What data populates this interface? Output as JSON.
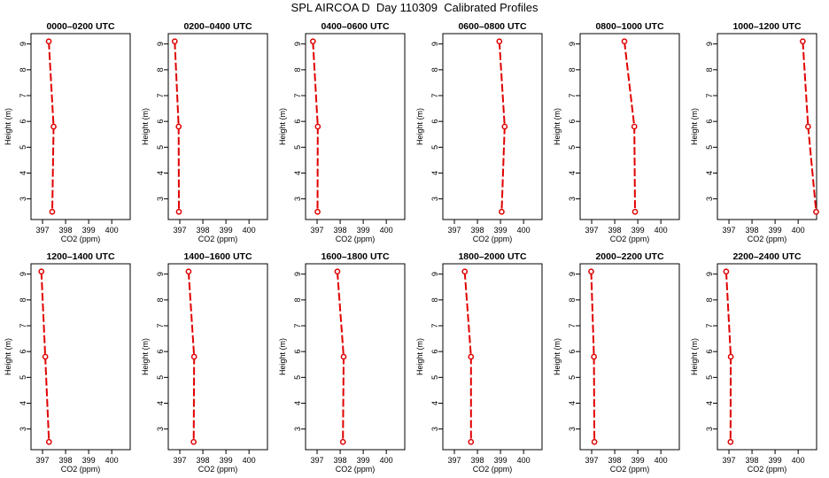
{
  "title": "SPL AIRCOA D  Day 110309  Calibrated Profiles",
  "colors": {
    "series": "#e00000",
    "axis": "#000000",
    "background": "#ffffff"
  },
  "chart_data": [
    {
      "type": "line",
      "title": "0000–0200 UTC",
      "xlabel": "CO2 (ppm)",
      "ylabel": "Height (m)",
      "xlim": [
        396.5,
        400.8
      ],
      "ylim": [
        2.2,
        9.4
      ],
      "xticks": [
        397,
        398,
        399,
        400
      ],
      "yticks": [
        3,
        4,
        5,
        6,
        7,
        8,
        9
      ],
      "grid": false,
      "points": [
        [
          397.27,
          9.1
        ],
        [
          397.48,
          5.8
        ],
        [
          397.42,
          2.5
        ]
      ]
    },
    {
      "type": "line",
      "title": "0200–0400 UTC",
      "xlabel": "CO2 (ppm)",
      "ylabel": "Height (m)",
      "xlim": [
        396.5,
        400.8
      ],
      "ylim": [
        2.2,
        9.4
      ],
      "xticks": [
        397,
        398,
        399,
        400
      ],
      "yticks": [
        3,
        4,
        5,
        6,
        7,
        8,
        9
      ],
      "grid": false,
      "points": [
        [
          396.78,
          9.1
        ],
        [
          396.95,
          5.8
        ],
        [
          396.96,
          2.5
        ]
      ]
    },
    {
      "type": "line",
      "title": "0400–0600 UTC",
      "xlabel": "CO2 (ppm)",
      "ylabel": "Height (m)",
      "xlim": [
        396.5,
        400.8
      ],
      "ylim": [
        2.2,
        9.4
      ],
      "xticks": [
        397,
        398,
        399,
        400
      ],
      "yticks": [
        3,
        4,
        5,
        6,
        7,
        8,
        9
      ],
      "grid": false,
      "points": [
        [
          396.82,
          9.1
        ],
        [
          397.03,
          5.8
        ],
        [
          397.02,
          2.5
        ]
      ]
    },
    {
      "type": "line",
      "title": "0600–0800 UTC",
      "xlabel": "CO2 (ppm)",
      "ylabel": "Height (m)",
      "xlim": [
        396.5,
        400.8
      ],
      "ylim": [
        2.2,
        9.4
      ],
      "xticks": [
        397,
        398,
        399,
        400
      ],
      "yticks": [
        3,
        4,
        5,
        6,
        7,
        8,
        9
      ],
      "grid": false,
      "points": [
        [
          398.95,
          9.1
        ],
        [
          399.18,
          5.8
        ],
        [
          399.05,
          2.5
        ]
      ]
    },
    {
      "type": "line",
      "title": "0800–1000 UTC",
      "xlabel": "CO2 (ppm)",
      "ylabel": "Height (m)",
      "xlim": [
        396.5,
        400.8
      ],
      "ylim": [
        2.2,
        9.4
      ],
      "xticks": [
        397,
        398,
        399,
        400
      ],
      "yticks": [
        3,
        4,
        5,
        6,
        7,
        8,
        9
      ],
      "grid": false,
      "points": [
        [
          398.42,
          9.1
        ],
        [
          398.85,
          5.8
        ],
        [
          398.88,
          2.5
        ]
      ]
    },
    {
      "type": "line",
      "title": "1000–1200 UTC",
      "xlabel": "CO2 (ppm)",
      "ylabel": "Height (m)",
      "xlim": [
        396.5,
        400.8
      ],
      "ylim": [
        2.2,
        9.4
      ],
      "xticks": [
        397,
        398,
        399,
        400
      ],
      "yticks": [
        3,
        4,
        5,
        6,
        7,
        8,
        9
      ],
      "grid": false,
      "points": [
        [
          400.2,
          9.1
        ],
        [
          400.43,
          5.8
        ],
        [
          400.78,
          2.5
        ]
      ]
    },
    {
      "type": "line",
      "title": "1200–1400 UTC",
      "xlabel": "CO2 (ppm)",
      "ylabel": "Height (m)",
      "xlim": [
        396.5,
        400.8
      ],
      "ylim": [
        2.2,
        9.4
      ],
      "xticks": [
        397,
        398,
        399,
        400
      ],
      "yticks": [
        3,
        4,
        5,
        6,
        7,
        8,
        9
      ],
      "grid": false,
      "points": [
        [
          396.95,
          9.1
        ],
        [
          397.12,
          5.8
        ],
        [
          397.28,
          2.5
        ]
      ]
    },
    {
      "type": "line",
      "title": "1400–1600 UTC",
      "xlabel": "CO2 (ppm)",
      "ylabel": "Height (m)",
      "xlim": [
        396.5,
        400.8
      ],
      "ylim": [
        2.2,
        9.4
      ],
      "xticks": [
        397,
        398,
        399,
        400
      ],
      "yticks": [
        3,
        4,
        5,
        6,
        7,
        8,
        9
      ],
      "grid": false,
      "points": [
        [
          397.38,
          9.1
        ],
        [
          397.62,
          5.8
        ],
        [
          397.6,
          2.5
        ]
      ]
    },
    {
      "type": "line",
      "title": "1600–1800 UTC",
      "xlabel": "CO2 (ppm)",
      "ylabel": "Height (m)",
      "xlim": [
        396.5,
        400.8
      ],
      "ylim": [
        2.2,
        9.4
      ],
      "xticks": [
        397,
        398,
        399,
        400
      ],
      "yticks": [
        3,
        4,
        5,
        6,
        7,
        8,
        9
      ],
      "grid": false,
      "points": [
        [
          397.88,
          9.1
        ],
        [
          398.15,
          5.8
        ],
        [
          398.12,
          2.5
        ]
      ]
    },
    {
      "type": "line",
      "title": "1800–2000 UTC",
      "xlabel": "CO2 (ppm)",
      "ylabel": "Height (m)",
      "xlim": [
        396.5,
        400.8
      ],
      "ylim": [
        2.2,
        9.4
      ],
      "xticks": [
        397,
        398,
        399,
        400
      ],
      "yticks": [
        3,
        4,
        5,
        6,
        7,
        8,
        9
      ],
      "grid": false,
      "points": [
        [
          397.45,
          9.1
        ],
        [
          397.72,
          5.8
        ],
        [
          397.72,
          2.5
        ]
      ]
    },
    {
      "type": "line",
      "title": "2000–2200 UTC",
      "xlabel": "CO2 (ppm)",
      "ylabel": "Height (m)",
      "xlim": [
        396.5,
        400.8
      ],
      "ylim": [
        2.2,
        9.4
      ],
      "xticks": [
        397,
        398,
        399,
        400
      ],
      "yticks": [
        3,
        4,
        5,
        6,
        7,
        8,
        9
      ],
      "grid": false,
      "points": [
        [
          396.98,
          9.1
        ],
        [
          397.1,
          5.8
        ],
        [
          397.12,
          2.5
        ]
      ]
    },
    {
      "type": "line",
      "title": "2200–2400 UTC",
      "xlabel": "CO2 (ppm)",
      "ylabel": "Height (m)",
      "xlim": [
        396.5,
        400.8
      ],
      "ylim": [
        2.2,
        9.4
      ],
      "xticks": [
        397,
        398,
        399,
        400
      ],
      "yticks": [
        3,
        4,
        5,
        6,
        7,
        8,
        9
      ],
      "grid": false,
      "points": [
        [
          396.88,
          9.1
        ],
        [
          397.08,
          5.8
        ],
        [
          397.07,
          2.5
        ]
      ]
    }
  ]
}
